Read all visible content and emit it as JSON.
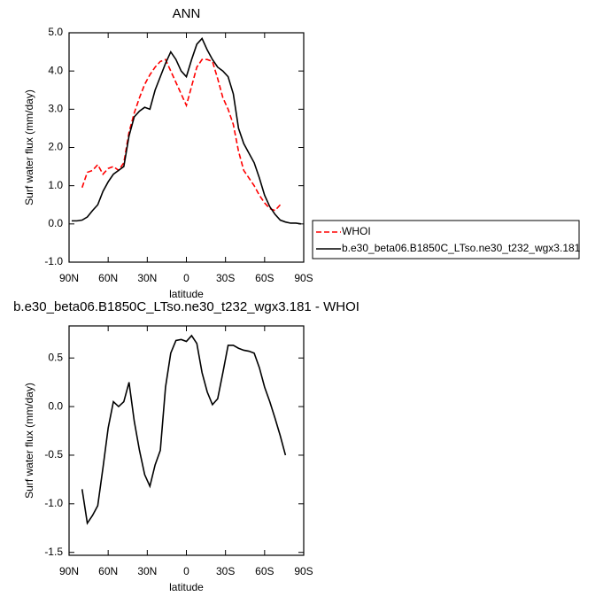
{
  "chart_data": [
    {
      "type": "line",
      "title": "ANN",
      "ylabel": "Surf water flux (mm/day)",
      "xlabel": "latitude",
      "x": [
        88,
        84,
        80,
        76,
        72,
        68,
        64,
        60,
        56,
        52,
        48,
        44,
        40,
        36,
        32,
        28,
        24,
        20,
        16,
        12,
        8,
        4,
        0,
        -4,
        -8,
        -12,
        -16,
        -20,
        -24,
        -28,
        -32,
        -36,
        -40,
        -44,
        -48,
        -52,
        -56,
        -60,
        -64,
        -68,
        -72,
        -76,
        -80,
        -84,
        -88
      ],
      "series": [
        {
          "name": "WHOI",
          "color": "#ff0000",
          "linestyle": "dashed",
          "values": [
            null,
            null,
            0.95,
            1.35,
            1.4,
            1.55,
            1.3,
            1.45,
            1.5,
            1.4,
            1.6,
            2.4,
            2.9,
            3.3,
            3.65,
            3.9,
            4.1,
            4.25,
            4.3,
            4.0,
            3.7,
            3.4,
            3.1,
            3.6,
            4.1,
            4.3,
            4.3,
            4.25,
            3.8,
            3.3,
            3.0,
            2.6,
            1.9,
            1.4,
            1.2,
            1.0,
            0.75,
            0.55,
            0.4,
            0.35,
            0.5,
            null,
            null,
            null,
            null
          ]
        },
        {
          "name": "b.e30_beta06.B1850C_LTso.ne30_t232_wgx3.181",
          "color": "#000000",
          "linestyle": "solid",
          "values": [
            0.08,
            0.08,
            0.1,
            0.18,
            0.35,
            0.5,
            0.85,
            1.1,
            1.3,
            1.4,
            1.5,
            2.3,
            2.8,
            2.95,
            3.05,
            3.0,
            3.5,
            3.85,
            4.2,
            4.5,
            4.3,
            4.0,
            3.85,
            4.3,
            4.7,
            4.85,
            4.55,
            4.3,
            4.1,
            4.0,
            3.85,
            3.4,
            2.5,
            2.1,
            1.85,
            1.6,
            1.2,
            0.75,
            0.45,
            0.25,
            0.1,
            0.05,
            0.02,
            0.02,
            0.0
          ]
        }
      ],
      "xlim": [
        90,
        -90
      ],
      "xticks": [
        {
          "value": 90,
          "label": "90N"
        },
        {
          "value": 60,
          "label": "60N"
        },
        {
          "value": 30,
          "label": "30N"
        },
        0,
        {
          "value": -30,
          "label": "30S"
        },
        {
          "value": -60,
          "label": "60S"
        },
        {
          "value": -90,
          "label": "90S"
        }
      ],
      "ylim": [
        -1.0,
        5.0
      ],
      "yticks": [
        {
          "value": -1.0,
          "label": "-1.0"
        },
        {
          "value": 0.0,
          "label": "0.0"
        },
        {
          "value": 1.0,
          "label": "1.0"
        },
        {
          "value": 2.0,
          "label": "2.0"
        },
        {
          "value": 3.0,
          "label": "3.0"
        },
        {
          "value": 4.0,
          "label": "4.0"
        },
        {
          "value": 5.0,
          "label": "5.0"
        }
      ]
    },
    {
      "type": "line",
      "title": "b.e30_beta06.B1850C_LTso.ne30_t232_wgx3.181 - WHOI",
      "ylabel": "Surf water flux (mm/day)",
      "xlabel": "latitude",
      "x": [
        88,
        84,
        80,
        76,
        72,
        68,
        64,
        60,
        56,
        52,
        48,
        44,
        40,
        36,
        32,
        28,
        24,
        20,
        16,
        12,
        8,
        4,
        0,
        -4,
        -8,
        -12,
        -16,
        -20,
        -24,
        -28,
        -32,
        -36,
        -40,
        -44,
        -48,
        -52,
        -56,
        -60,
        -64,
        -68,
        -72,
        -76,
        -80,
        -84,
        -88
      ],
      "color": "#000000",
      "values": [
        null,
        null,
        -0.85,
        -1.2,
        -1.12,
        -1.02,
        -0.63,
        -0.22,
        0.05,
        0.0,
        0.05,
        0.25,
        -0.15,
        -0.45,
        -0.7,
        -0.82,
        -0.6,
        -0.45,
        0.2,
        0.55,
        0.68,
        0.69,
        0.67,
        0.73,
        0.65,
        0.35,
        0.15,
        0.02,
        0.08,
        0.35,
        0.63,
        0.63,
        0.6,
        0.58,
        0.57,
        0.55,
        0.4,
        0.2,
        0.05,
        -0.12,
        -0.3,
        -0.5,
        null,
        null,
        null
      ],
      "xlim": [
        90,
        -90
      ],
      "xticks": [
        {
          "value": 90,
          "label": "90N"
        },
        {
          "value": 60,
          "label": "60N"
        },
        {
          "value": 30,
          "label": "30N"
        },
        0,
        {
          "value": -30,
          "label": "30S"
        },
        {
          "value": -60,
          "label": "60S"
        },
        {
          "value": -90,
          "label": "90S"
        }
      ],
      "ylim": [
        -1.53,
        0.83
      ],
      "yticks": [
        0.5,
        {
          "value": 0.0,
          "label": "0.0"
        },
        -0.5,
        {
          "value": -1.0,
          "label": "-1.0"
        },
        -1.5
      ]
    }
  ]
}
